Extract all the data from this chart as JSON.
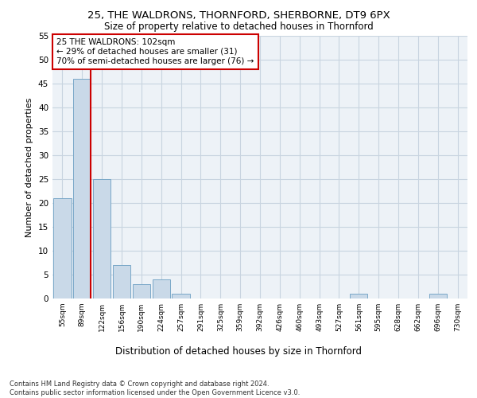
{
  "title1": "25, THE WALDRONS, THORNFORD, SHERBORNE, DT9 6PX",
  "title2": "Size of property relative to detached houses in Thornford",
  "xlabel": "Distribution of detached houses by size in Thornford",
  "ylabel": "Number of detached properties",
  "bar_categories": [
    "55sqm",
    "89sqm",
    "122sqm",
    "156sqm",
    "190sqm",
    "224sqm",
    "257sqm",
    "291sqm",
    "325sqm",
    "359sqm",
    "392sqm",
    "426sqm",
    "460sqm",
    "493sqm",
    "527sqm",
    "561sqm",
    "595sqm",
    "628sqm",
    "662sqm",
    "696sqm",
    "730sqm"
  ],
  "bar_values": [
    21,
    46,
    25,
    7,
    3,
    4,
    1,
    0,
    0,
    0,
    0,
    0,
    0,
    0,
    0,
    1,
    0,
    0,
    0,
    1,
    0
  ],
  "bar_color": "#c9d9e8",
  "bar_edge_color": "#7aa8c8",
  "grid_color": "#c8d4e0",
  "annotation_text": "25 THE WALDRONS: 102sqm\n← 29% of detached houses are smaller (31)\n70% of semi-detached houses are larger (76) →",
  "annotation_box_edge": "#cc0000",
  "vline_color": "#cc0000",
  "ylim": [
    0,
    55
  ],
  "yticks": [
    0,
    5,
    10,
    15,
    20,
    25,
    30,
    35,
    40,
    45,
    50,
    55
  ],
  "footnote": "Contains HM Land Registry data © Crown copyright and database right 2024.\nContains public sector information licensed under the Open Government Licence v3.0.",
  "bg_color": "#edf2f7"
}
